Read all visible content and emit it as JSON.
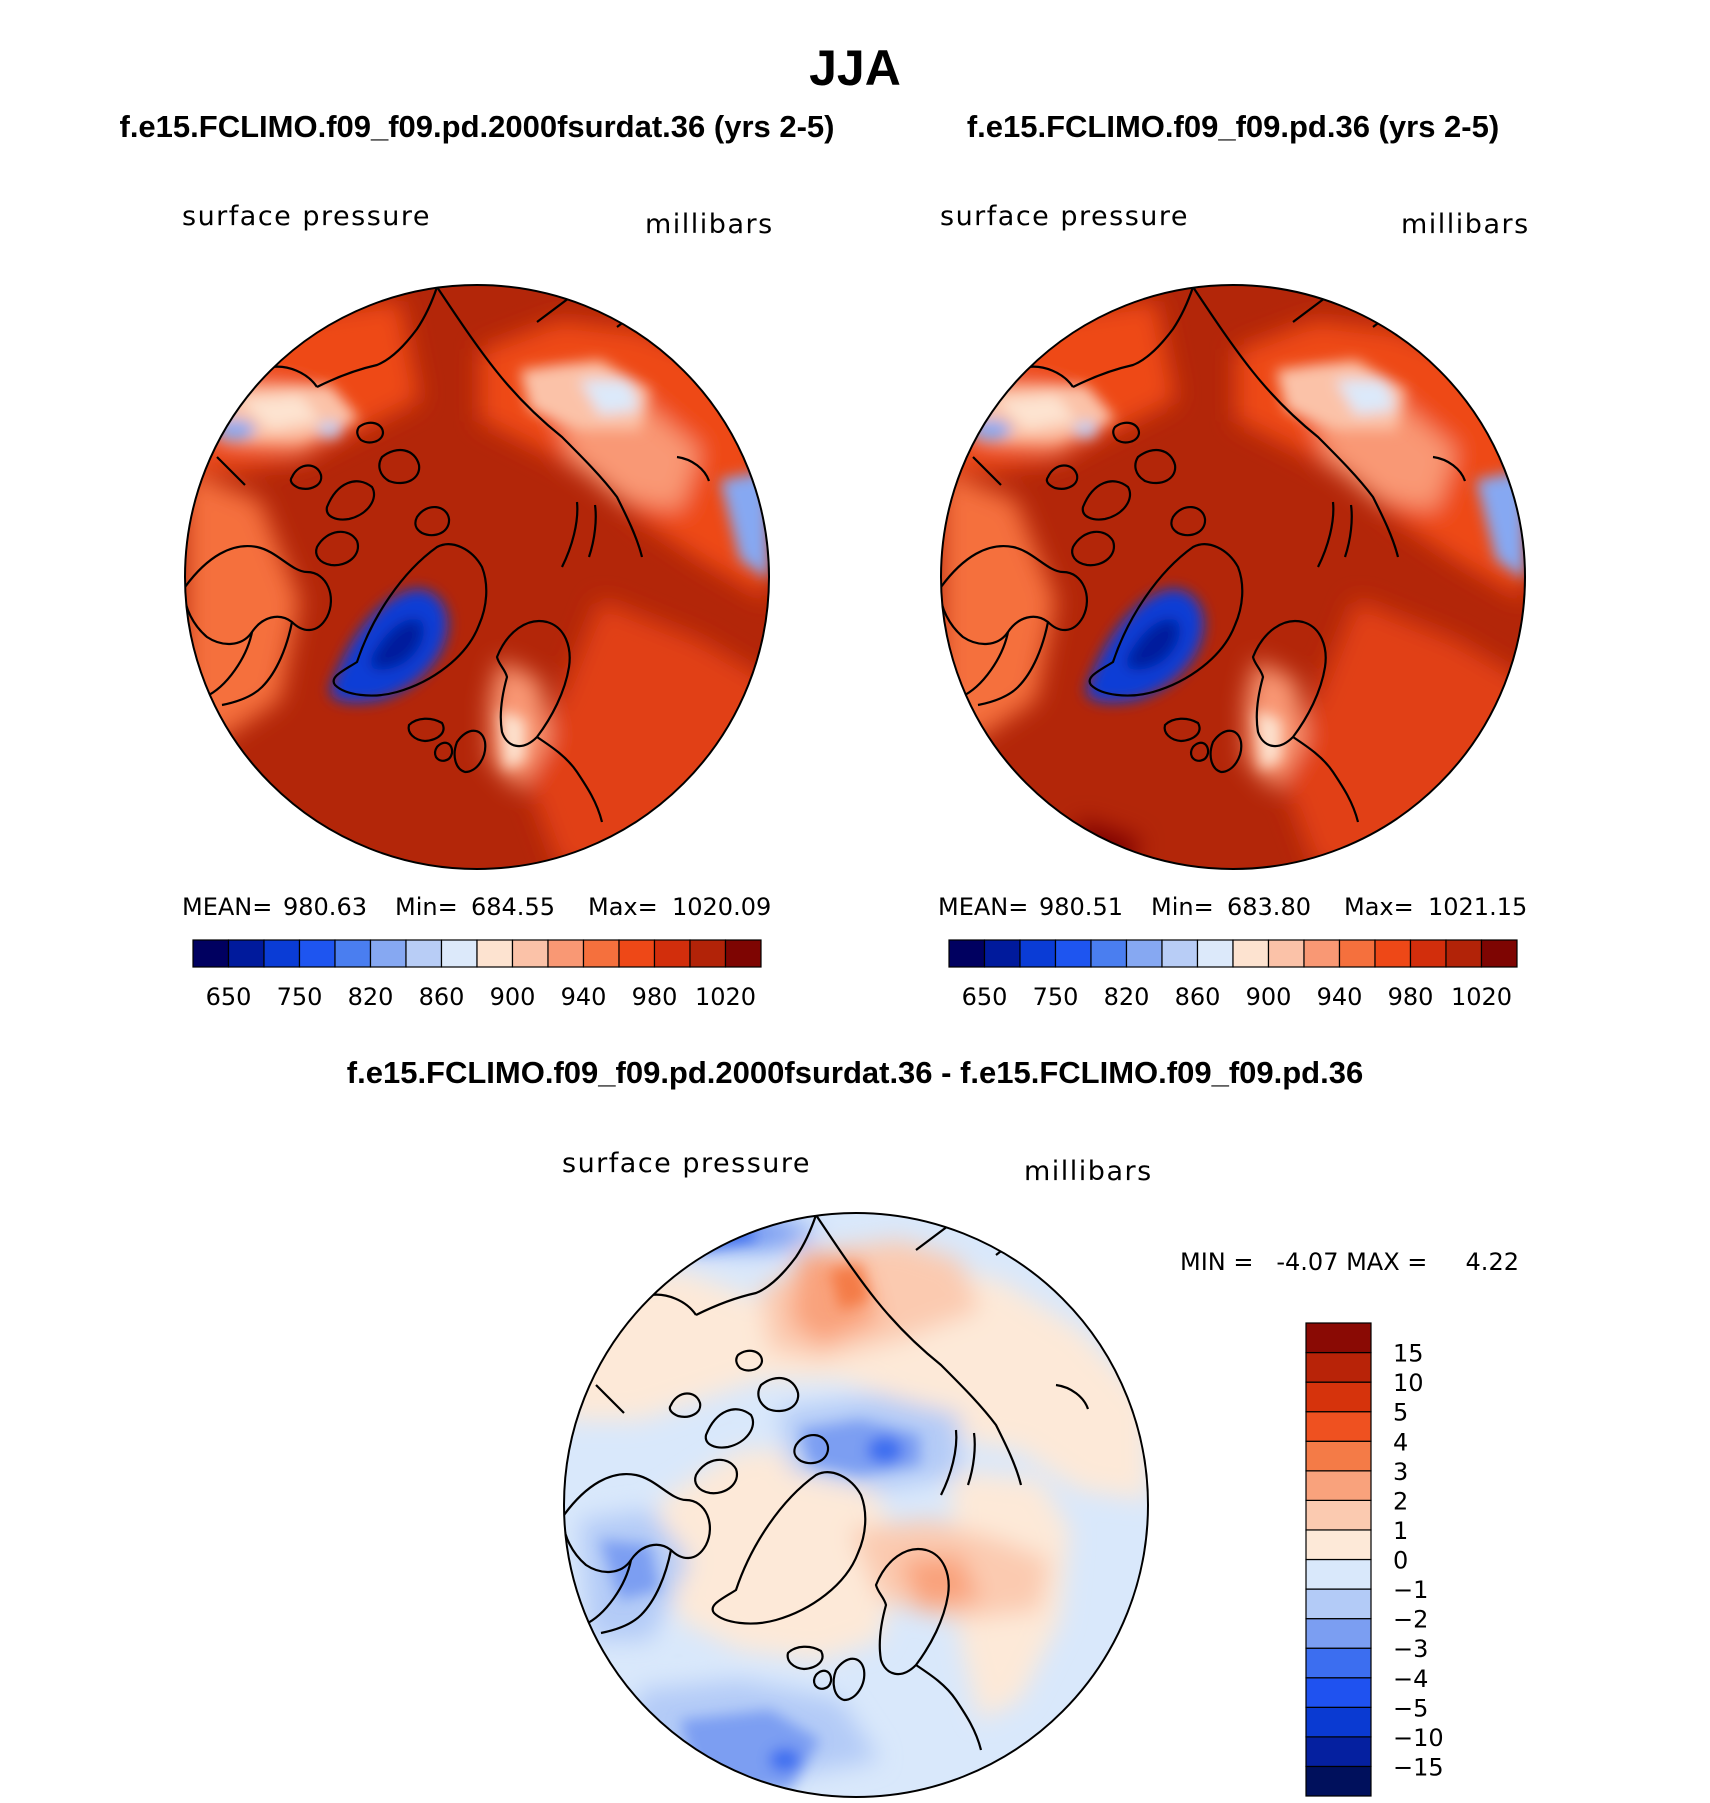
{
  "figure": {
    "title": "JJA",
    "panels": [
      {
        "title": "f.e15.FCLIMO.f09_f09.pd.2000fsurdat.36 (yrs 2-5)",
        "left_label": "surface pressure",
        "right_label": "millibars",
        "stats": {
          "mean_label": "MEAN=",
          "mean": "980.63",
          "min_label": "Min=",
          "min": "684.55",
          "max_label": "Max=",
          "max": "1020.09"
        }
      },
      {
        "title": "f.e15.FCLIMO.f09_f09.pd.36 (yrs 2-5)",
        "left_label": "surface pressure",
        "right_label": "millibars",
        "stats": {
          "mean_label": "MEAN=",
          "mean": "980.51",
          "min_label": "Min=",
          "min": "683.80",
          "max_label": "Max=",
          "max": "1021.15"
        }
      }
    ],
    "diff_panel": {
      "title": "f.e15.FCLIMO.f09_f09.pd.2000fsurdat.36 - f.e15.FCLIMO.f09_f09.pd.36",
      "left_label": "surface pressure",
      "right_label": "millibars",
      "minmax_text": "MIN =   -4.07 MAX =     4.22"
    },
    "abs_colorbar": {
      "colors": [
        "#000060",
        "#001a9c",
        "#0a3cd6",
        "#1e55f0",
        "#4a7ef0",
        "#86a8f2",
        "#b8cdf6",
        "#dce9fa",
        "#fde3d0",
        "#fbc2a8",
        "#f99874",
        "#f5703d",
        "#ee4817",
        "#d22e0c",
        "#b22308",
        "#7e0502"
      ],
      "tick_labels": [
        "650",
        "750",
        "820",
        "860",
        "900",
        "940",
        "980",
        "1020"
      ]
    },
    "diff_colorbar": {
      "colors": [
        "#00105c",
        "#0520a0",
        "#0a3ad2",
        "#1f52f0",
        "#3c6ef0",
        "#7b9ef2",
        "#b3cbf7",
        "#d9e8fb",
        "#fde9d8",
        "#fbcab0",
        "#f9a27c",
        "#f47b47",
        "#ef5120",
        "#d6330c",
        "#b82308",
        "#8a0a04"
      ],
      "tick_labels": [
        "15",
        "10",
        "5",
        "4",
        "3",
        "2",
        "1",
        "0",
        "−1",
        "−2",
        "−3",
        "−4",
        "−5",
        "−10",
        "−15"
      ]
    }
  }
}
